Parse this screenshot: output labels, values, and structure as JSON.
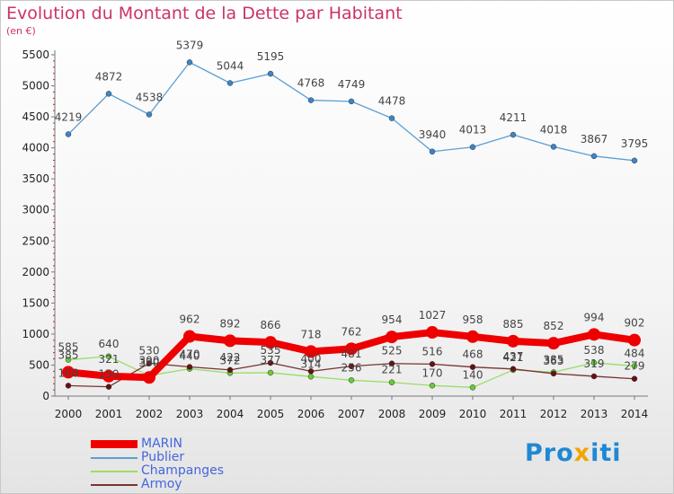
{
  "title": "Evolution du Montant de la Dette par Habitant",
  "subtitle": "(en €)",
  "brand": {
    "part1": "Pro",
    "part2": "x",
    "part3": "iti"
  },
  "chart_data": {
    "type": "line",
    "x": [
      2000,
      2001,
      2002,
      2003,
      2004,
      2005,
      2006,
      2007,
      2008,
      2009,
      2010,
      2011,
      2012,
      2013,
      2014
    ],
    "ylim": [
      0,
      5500
    ],
    "yticks": [
      0,
      500,
      1000,
      1500,
      2000,
      2500,
      3000,
      3500,
      4000,
      4500,
      5000,
      5500
    ],
    "grid": false,
    "legend_position": "bottom-left",
    "series": [
      {
        "name": "Publier",
        "color": "#5a9fd4",
        "point_color": "#3d85c6",
        "values": [
          4219,
          4872,
          4538,
          5379,
          5044,
          5195,
          4768,
          4749,
          4478,
          3940,
          4013,
          4211,
          4018,
          3867,
          3795
        ],
        "labels": [
          "4219",
          "4872",
          "4538",
          "5379",
          "5044",
          "5195",
          "4768",
          "4749",
          "4478",
          "3940",
          "4013",
          "4211",
          "4018",
          "3867",
          "3795"
        ]
      },
      {
        "name": "Champanges",
        "color": "#99dd66",
        "point_color": "#66cc33",
        "values": [
          585,
          640,
          330,
          440,
          372,
          377,
          314,
          256,
          221,
          170,
          140,
          421,
          385,
          538,
          484
        ],
        "labels": [
          "585",
          "640",
          "330",
          "440",
          "372",
          "377",
          "314",
          "256",
          "221",
          "170",
          "140",
          "421",
          "385",
          "538",
          "484"
        ]
      },
      {
        "name": "Armoy",
        "color": "#773333",
        "point_color": "#661111",
        "values": [
          168,
          150,
          530,
          470,
          422,
          535,
          400,
          481,
          525,
          516,
          468,
          437,
          363,
          319,
          279
        ],
        "labels": [
          "168",
          "150",
          "530",
          "470",
          "422",
          "535",
          "400",
          "481",
          "525",
          "516",
          "468",
          "437",
          "363",
          "319",
          "279"
        ]
      },
      {
        "name": "MARIN",
        "color": "#ee0000",
        "point_color": "#ee0000",
        "values": [
          385,
          321,
          300,
          962,
          892,
          866,
          718,
          762,
          954,
          1027,
          958,
          885,
          852,
          994,
          902
        ],
        "labels": [
          "385",
          "321",
          "300",
          "962",
          "892",
          "866",
          "718",
          "762",
          "954",
          "1027",
          "958",
          "885",
          "852",
          "994",
          "902"
        ]
      }
    ],
    "legend": [
      {
        "name": "MARIN",
        "color": "#ee0000"
      },
      {
        "name": "Publier",
        "color": "#5a9fd4"
      },
      {
        "name": "Champanges",
        "color": "#99dd66"
      },
      {
        "name": "Armoy",
        "color": "#773333"
      }
    ]
  }
}
